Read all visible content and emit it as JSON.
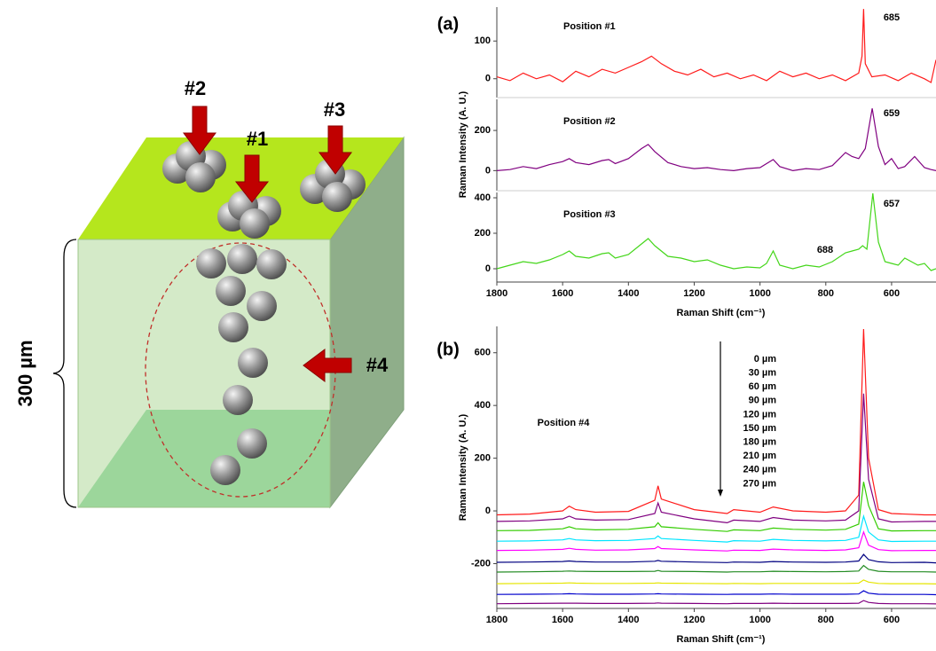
{
  "diagram": {
    "labels": [
      "#1",
      "#2",
      "#3",
      "#4"
    ],
    "dimension": "300 µm"
  },
  "figure": {
    "panel_labels": [
      "(a)",
      "(b)"
    ]
  },
  "chart_data": [
    {
      "type": "line",
      "xlim": [
        1800,
        465
      ],
      "ylim": [
        -50,
        190
      ],
      "yticks": [
        0,
        100
      ],
      "x": [
        1800,
        1760,
        1720,
        1680,
        1640,
        1600,
        1560,
        1520,
        1480,
        1440,
        1400,
        1360,
        1330,
        1300,
        1260,
        1220,
        1180,
        1140,
        1100,
        1060,
        1020,
        980,
        940,
        900,
        860,
        820,
        780,
        740,
        700,
        690,
        685,
        680,
        660,
        620,
        580,
        540,
        500,
        480,
        465
      ],
      "series": [
        {
          "name": "Position #1",
          "color": "#ff1a1a",
          "values": [
            5,
            -5,
            15,
            0,
            10,
            -8,
            20,
            5,
            25,
            15,
            30,
            45,
            60,
            40,
            20,
            10,
            25,
            5,
            15,
            0,
            10,
            -5,
            20,
            5,
            15,
            0,
            10,
            -5,
            15,
            60,
            185,
            40,
            5,
            10,
            -5,
            15,
            0,
            -10,
            50
          ]
        }
      ],
      "annotations": [
        "685"
      ]
    },
    {
      "type": "line",
      "xlim": [
        1800,
        465
      ],
      "ylim": [
        -100,
        355
      ],
      "yticks": [
        0,
        200
      ],
      "ylabel": "Raman Intensity (A. U.)",
      "x": [
        1800,
        1760,
        1720,
        1680,
        1640,
        1600,
        1580,
        1560,
        1520,
        1480,
        1460,
        1440,
        1400,
        1360,
        1340,
        1320,
        1280,
        1240,
        1200,
        1160,
        1120,
        1080,
        1040,
        1000,
        960,
        940,
        900,
        860,
        820,
        780,
        740,
        720,
        700,
        680,
        659,
        640,
        620,
        600,
        580,
        560,
        530,
        500,
        480,
        465
      ],
      "series": [
        {
          "name": "Position #2",
          "color": "#800080",
          "values": [
            0,
            5,
            20,
            10,
            30,
            45,
            60,
            40,
            30,
            50,
            55,
            35,
            60,
            110,
            130,
            95,
            40,
            20,
            10,
            15,
            5,
            0,
            10,
            15,
            55,
            20,
            0,
            10,
            5,
            25,
            90,
            70,
            60,
            110,
            310,
            120,
            30,
            60,
            10,
            20,
            70,
            15,
            5,
            0
          ]
        }
      ],
      "annotations": [
        "659"
      ]
    },
    {
      "type": "line",
      "xlim": [
        1800,
        465
      ],
      "ylim": [
        -75,
        430
      ],
      "yticks": [
        0,
        200,
        400
      ],
      "xticks": [
        1800,
        1600,
        1400,
        1200,
        1000,
        800,
        600
      ],
      "xlabel": "Raman Shift (cm⁻¹)",
      "x": [
        1800,
        1760,
        1720,
        1680,
        1640,
        1600,
        1580,
        1560,
        1520,
        1480,
        1460,
        1440,
        1400,
        1360,
        1340,
        1320,
        1280,
        1240,
        1200,
        1160,
        1120,
        1080,
        1040,
        1000,
        980,
        960,
        940,
        900,
        860,
        820,
        780,
        740,
        720,
        700,
        688,
        675,
        657,
        640,
        620,
        600,
        580,
        560,
        520,
        500,
        480,
        465
      ],
      "series": [
        {
          "name": "Position #3",
          "color": "#44d61a",
          "values": [
            0,
            20,
            40,
            30,
            50,
            80,
            100,
            70,
            60,
            85,
            90,
            60,
            80,
            140,
            170,
            130,
            70,
            60,
            40,
            50,
            20,
            0,
            10,
            5,
            30,
            100,
            20,
            0,
            20,
            10,
            40,
            90,
            100,
            110,
            130,
            110,
            425,
            150,
            40,
            30,
            20,
            60,
            20,
            30,
            -10,
            0
          ]
        }
      ],
      "annotations": [
        "688",
        "657"
      ]
    },
    {
      "type": "line",
      "xlim": [
        1800,
        465
      ],
      "ylim": [
        -370,
        700
      ],
      "yticks": [
        -200,
        0,
        200,
        400,
        600
      ],
      "xticks": [
        1800,
        1600,
        1400,
        1200,
        1000,
        800,
        600
      ],
      "xlabel": "Raman Shift (cm⁻¹)",
      "ylabel": "Raman Intensity (A. U.)",
      "annotations": [
        "Position #4"
      ],
      "x": [
        1800,
        1700,
        1600,
        1580,
        1560,
        1500,
        1400,
        1320,
        1310,
        1300,
        1200,
        1100,
        1080,
        1000,
        960,
        900,
        800,
        740,
        700,
        685,
        670,
        640,
        600,
        500,
        465
      ],
      "series": [
        {
          "name": "0 µm",
          "color": "#ff1a1a",
          "values": [
            -15,
            -12,
            0,
            18,
            5,
            -5,
            -2,
            40,
            95,
            45,
            5,
            -10,
            5,
            -5,
            15,
            0,
            -5,
            0,
            60,
            690,
            200,
            5,
            -10,
            -15,
            -15
          ]
        },
        {
          "name": "30 µm",
          "color": "#800080",
          "values": [
            -40,
            -38,
            -30,
            -20,
            -30,
            -35,
            -33,
            -10,
            30,
            -5,
            -30,
            -45,
            -35,
            -40,
            -25,
            -35,
            -38,
            -35,
            0,
            445,
            120,
            -30,
            -42,
            -40,
            -40
          ]
        },
        {
          "name": "60 µm",
          "color": "#33cc00",
          "values": [
            -75,
            -74,
            -68,
            -60,
            -68,
            -72,
            -70,
            -60,
            -45,
            -60,
            -70,
            -78,
            -72,
            -75,
            -65,
            -70,
            -73,
            -70,
            -50,
            110,
            20,
            -68,
            -76,
            -75,
            -75
          ]
        },
        {
          "name": "90 µm",
          "color": "#00e5ff",
          "values": [
            -115,
            -114,
            -110,
            -105,
            -110,
            -113,
            -112,
            -105,
            -95,
            -105,
            -112,
            -118,
            -113,
            -115,
            -108,
            -112,
            -114,
            -112,
            -100,
            -20,
            -80,
            -110,
            -116,
            -115,
            -115
          ]
        },
        {
          "name": "120 µm",
          "color": "#ff00ff",
          "values": [
            -150,
            -149,
            -146,
            -142,
            -146,
            -149,
            -148,
            -143,
            -135,
            -143,
            -148,
            -152,
            -149,
            -150,
            -145,
            -148,
            -150,
            -148,
            -140,
            -80,
            -130,
            -147,
            -151,
            -150,
            -150
          ]
        },
        {
          "name": "150 µm",
          "color": "#000080",
          "values": [
            -195,
            -194,
            -192,
            -190,
            -192,
            -194,
            -194,
            -191,
            -188,
            -191,
            -194,
            -196,
            -194,
            -195,
            -192,
            -194,
            -195,
            -194,
            -190,
            -165,
            -185,
            -193,
            -196,
            -195,
            -197
          ]
        },
        {
          "name": "180 µm",
          "color": "#228b22",
          "values": [
            -232,
            -231,
            -229,
            -228,
            -229,
            -230,
            -230,
            -229,
            -226,
            -229,
            -230,
            -232,
            -231,
            -231,
            -229,
            -230,
            -231,
            -230,
            -228,
            -207,
            -222,
            -229,
            -231,
            -231,
            -232
          ]
        },
        {
          "name": "210 µm",
          "color": "#e5e500",
          "values": [
            -276,
            -275,
            -274,
            -273,
            -274,
            -275,
            -275,
            -274,
            -273,
            -274,
            -275,
            -276,
            -275,
            -276,
            -275,
            -275,
            -275,
            -275,
            -274,
            -262,
            -270,
            -275,
            -276,
            -276,
            -277
          ]
        },
        {
          "name": "240 µm",
          "color": "#0000cc",
          "values": [
            -317,
            -316,
            -315,
            -314,
            -315,
            -316,
            -316,
            -315,
            -314,
            -315,
            -316,
            -317,
            -316,
            -316,
            -315,
            -316,
            -316,
            -316,
            -315,
            -303,
            -312,
            -316,
            -317,
            -317,
            -318
          ]
        },
        {
          "name": "270 µm",
          "color": "#800080",
          "values": [
            -352,
            -351,
            -350,
            -350,
            -350,
            -351,
            -351,
            -350,
            -349,
            -350,
            -351,
            -352,
            -351,
            -351,
            -350,
            -351,
            -351,
            -351,
            -350,
            -340,
            -347,
            -351,
            -352,
            -352,
            -353
          ]
        }
      ]
    }
  ]
}
